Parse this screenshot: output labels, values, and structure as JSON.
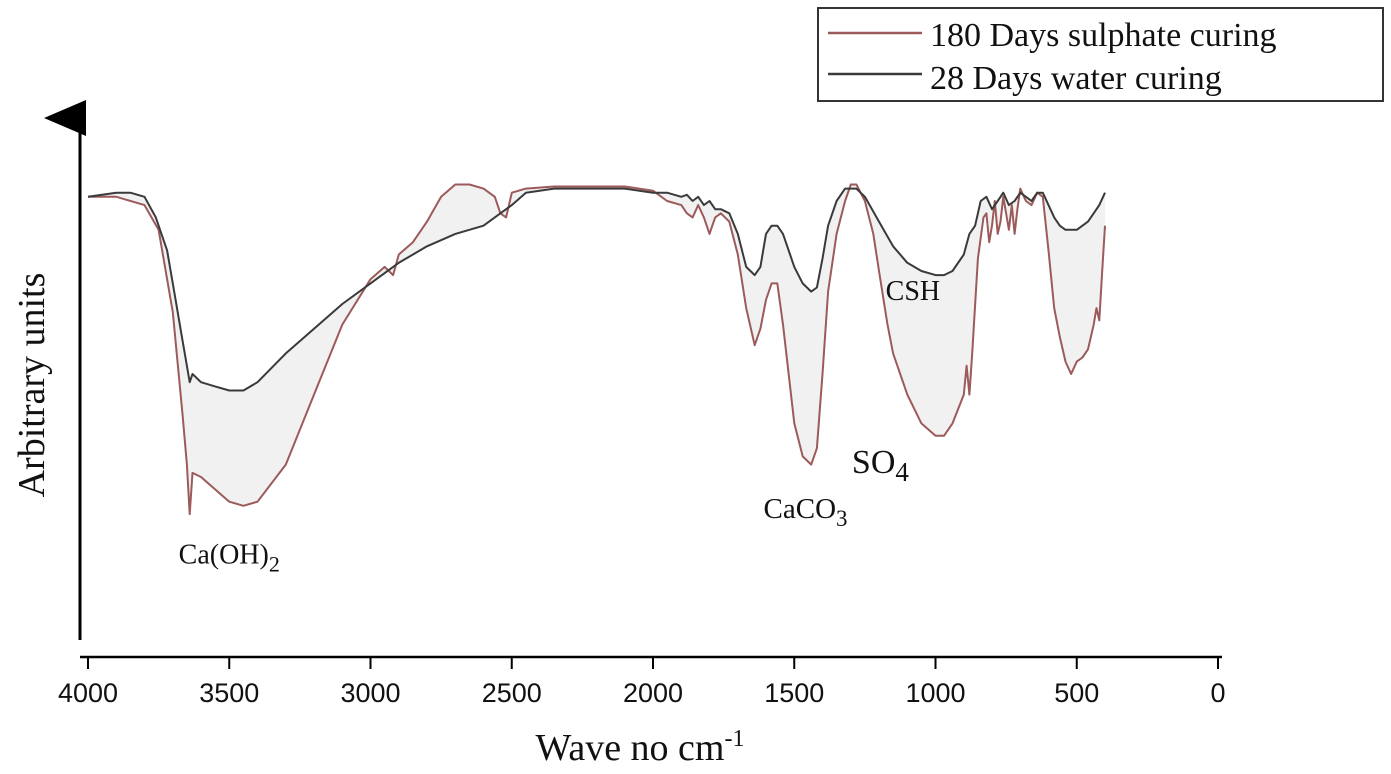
{
  "chart_data": {
    "type": "line",
    "xlabel": "Wave no cm",
    "xlabel_sup": "-1",
    "ylabel": "Arbitrary units",
    "xlim": [
      4000,
      0
    ],
    "x_reversed": true,
    "ylim": [
      0,
      100
    ],
    "xticks": [
      "4000",
      "3500",
      "3000",
      "2500",
      "2000",
      "1500",
      "1000",
      "500",
      "0"
    ],
    "grid": false,
    "legend_position": "top-right",
    "series": [
      {
        "name": "180 Days sulphate curing",
        "color": "#9c5a5a",
        "points": [
          [
            4000,
            93
          ],
          [
            3900,
            93
          ],
          [
            3800,
            91
          ],
          [
            3750,
            85
          ],
          [
            3700,
            65
          ],
          [
            3665,
            40
          ],
          [
            3650,
            28
          ],
          [
            3640,
            16
          ],
          [
            3630,
            26
          ],
          [
            3600,
            25
          ],
          [
            3550,
            22
          ],
          [
            3500,
            19
          ],
          [
            3450,
            18
          ],
          [
            3400,
            19
          ],
          [
            3300,
            28
          ],
          [
            3200,
            45
          ],
          [
            3100,
            62
          ],
          [
            3000,
            73
          ],
          [
            2950,
            76
          ],
          [
            2920,
            74
          ],
          [
            2900,
            79
          ],
          [
            2850,
            82
          ],
          [
            2800,
            87
          ],
          [
            2750,
            93
          ],
          [
            2700,
            96
          ],
          [
            2650,
            96
          ],
          [
            2600,
            95
          ],
          [
            2560,
            93
          ],
          [
            2540,
            89
          ],
          [
            2520,
            88
          ],
          [
            2500,
            94
          ],
          [
            2450,
            95
          ],
          [
            2350,
            95.5
          ],
          [
            2200,
            95.5
          ],
          [
            2100,
            95.5
          ],
          [
            2000,
            94.5
          ],
          [
            1950,
            92
          ],
          [
            1900,
            91
          ],
          [
            1880,
            89
          ],
          [
            1860,
            88
          ],
          [
            1840,
            91
          ],
          [
            1820,
            88
          ],
          [
            1800,
            84
          ],
          [
            1790,
            86
          ],
          [
            1780,
            88
          ],
          [
            1760,
            89
          ],
          [
            1730,
            87
          ],
          [
            1700,
            79
          ],
          [
            1670,
            66
          ],
          [
            1640,
            57
          ],
          [
            1620,
            61
          ],
          [
            1600,
            68
          ],
          [
            1580,
            72
          ],
          [
            1560,
            72
          ],
          [
            1540,
            62
          ],
          [
            1500,
            38
          ],
          [
            1470,
            30
          ],
          [
            1440,
            28
          ],
          [
            1420,
            32
          ],
          [
            1400,
            50
          ],
          [
            1380,
            70
          ],
          [
            1350,
            84
          ],
          [
            1320,
            92
          ],
          [
            1300,
            96
          ],
          [
            1280,
            96
          ],
          [
            1250,
            92
          ],
          [
            1220,
            84
          ],
          [
            1200,
            75
          ],
          [
            1170,
            62
          ],
          [
            1150,
            55
          ],
          [
            1100,
            45
          ],
          [
            1050,
            38
          ],
          [
            1000,
            35
          ],
          [
            970,
            35
          ],
          [
            940,
            38
          ],
          [
            900,
            45
          ],
          [
            890,
            52
          ],
          [
            880,
            45
          ],
          [
            870,
            55
          ],
          [
            850,
            78
          ],
          [
            830,
            88
          ],
          [
            820,
            89
          ],
          [
            810,
            82
          ],
          [
            800,
            86
          ],
          [
            790,
            92
          ],
          [
            780,
            84
          ],
          [
            770,
            87
          ],
          [
            760,
            93
          ],
          [
            740,
            85
          ],
          [
            730,
            91
          ],
          [
            720,
            84
          ],
          [
            710,
            90
          ],
          [
            700,
            95
          ],
          [
            680,
            92
          ],
          [
            660,
            91
          ],
          [
            640,
            94
          ],
          [
            620,
            93
          ],
          [
            600,
            80
          ],
          [
            580,
            66
          ],
          [
            560,
            59
          ],
          [
            540,
            53
          ],
          [
            520,
            50
          ],
          [
            500,
            53
          ],
          [
            480,
            54
          ],
          [
            460,
            56
          ],
          [
            440,
            62
          ],
          [
            430,
            66
          ],
          [
            420,
            63
          ],
          [
            410,
            75
          ],
          [
            400,
            86
          ]
        ]
      },
      {
        "name": "28 Days water curing",
        "color": "#3a3a3a",
        "points": [
          [
            4000,
            93
          ],
          [
            3900,
            94
          ],
          [
            3850,
            94
          ],
          [
            3800,
            93
          ],
          [
            3760,
            88
          ],
          [
            3720,
            80
          ],
          [
            3690,
            68
          ],
          [
            3670,
            60
          ],
          [
            3650,
            52
          ],
          [
            3640,
            48
          ],
          [
            3630,
            50
          ],
          [
            3600,
            48
          ],
          [
            3550,
            47
          ],
          [
            3500,
            46
          ],
          [
            3450,
            46
          ],
          [
            3400,
            48
          ],
          [
            3300,
            55
          ],
          [
            3200,
            61
          ],
          [
            3100,
            67
          ],
          [
            3000,
            72
          ],
          [
            2900,
            77
          ],
          [
            2800,
            81
          ],
          [
            2700,
            84
          ],
          [
            2600,
            86
          ],
          [
            2560,
            88
          ],
          [
            2540,
            89
          ],
          [
            2520,
            90
          ],
          [
            2500,
            91
          ],
          [
            2450,
            94
          ],
          [
            2350,
            95
          ],
          [
            2200,
            95
          ],
          [
            2100,
            95
          ],
          [
            2000,
            94
          ],
          [
            1950,
            94
          ],
          [
            1900,
            93
          ],
          [
            1880,
            93.5
          ],
          [
            1860,
            92
          ],
          [
            1840,
            93
          ],
          [
            1820,
            91
          ],
          [
            1800,
            92
          ],
          [
            1780,
            90
          ],
          [
            1760,
            90
          ],
          [
            1730,
            89
          ],
          [
            1700,
            84
          ],
          [
            1670,
            76
          ],
          [
            1640,
            74
          ],
          [
            1620,
            76
          ],
          [
            1600,
            84
          ],
          [
            1580,
            86
          ],
          [
            1560,
            86
          ],
          [
            1540,
            84
          ],
          [
            1500,
            76
          ],
          [
            1470,
            72
          ],
          [
            1440,
            70
          ],
          [
            1420,
            71
          ],
          [
            1400,
            78
          ],
          [
            1380,
            86
          ],
          [
            1350,
            92
          ],
          [
            1320,
            95
          ],
          [
            1300,
            95
          ],
          [
            1280,
            95
          ],
          [
            1250,
            93
          ],
          [
            1200,
            87
          ],
          [
            1150,
            81
          ],
          [
            1100,
            77
          ],
          [
            1050,
            75
          ],
          [
            1000,
            74
          ],
          [
            970,
            74
          ],
          [
            940,
            75
          ],
          [
            900,
            79
          ],
          [
            880,
            84
          ],
          [
            860,
            86
          ],
          [
            840,
            92
          ],
          [
            820,
            93
          ],
          [
            800,
            90
          ],
          [
            780,
            92
          ],
          [
            760,
            94
          ],
          [
            740,
            91
          ],
          [
            720,
            92
          ],
          [
            700,
            94
          ],
          [
            680,
            93
          ],
          [
            660,
            92
          ],
          [
            640,
            94
          ],
          [
            620,
            94
          ],
          [
            600,
            91
          ],
          [
            580,
            88
          ],
          [
            560,
            86
          ],
          [
            540,
            85
          ],
          [
            520,
            85
          ],
          [
            500,
            85
          ],
          [
            480,
            86
          ],
          [
            460,
            87
          ],
          [
            440,
            89
          ],
          [
            420,
            91
          ],
          [
            400,
            94
          ]
        ]
      }
    ],
    "annotations": [
      {
        "text": "Ca(OH)",
        "sub": "2",
        "x": 3500,
        "y": 4
      },
      {
        "text": "CaCO",
        "sub": "3",
        "x": 1460,
        "y": 15
      },
      {
        "text": "SO",
        "sub": "4",
        "x": 1195,
        "y": 26
      },
      {
        "text": "CSH",
        "x": 1080,
        "y": 68
      }
    ]
  }
}
